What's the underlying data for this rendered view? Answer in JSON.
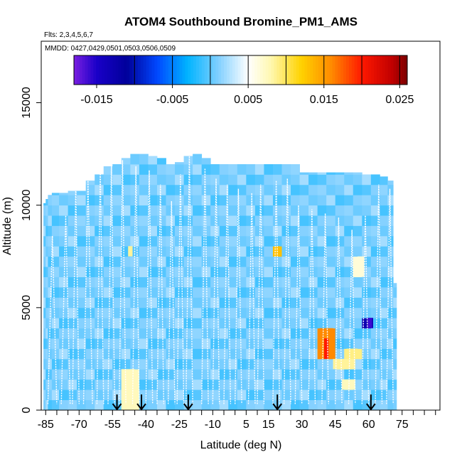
{
  "chart_data": {
    "type": "heatmap",
    "title": "ATOM4 Southbound Bromine_PM1_AMS",
    "flights_label": "Flts: 2,3,4,5,6,7",
    "dates_label": "MMDD: 0427,0429,0501,0503,0506,0509",
    "xlabel": "Latitude (deg N)",
    "ylabel": "Altitude (m)",
    "xlim": [
      -87,
      92
    ],
    "ylim": [
      0,
      18000
    ],
    "x_ticks": [
      -85,
      -70,
      -55,
      -40,
      -25,
      -10,
      5,
      15,
      30,
      45,
      60,
      75
    ],
    "x_tick_labels": [
      "-85",
      "-70",
      "-55",
      "-40",
      "-25",
      "-10",
      "5",
      "15",
      "30",
      "45",
      "60",
      "75"
    ],
    "x_minor_ticks": [
      -80,
      -75,
      -65,
      -60,
      -50,
      -45,
      -35,
      -30,
      -20,
      -15,
      -5,
      0,
      10,
      20,
      25,
      35,
      40,
      50,
      55,
      65,
      70,
      80,
      85,
      90
    ],
    "y_ticks": [
      0,
      5000,
      10000,
      15000
    ],
    "y_tick_labels": [
      "0",
      "5000",
      "10000",
      "15000"
    ],
    "colorbar": {
      "range": [
        -0.018,
        0.026
      ],
      "ticks": [
        -0.015,
        -0.005,
        0.005,
        0.015,
        0.025
      ],
      "tick_labels": [
        "-0.015",
        "-0.005",
        "0.005",
        "0.015",
        "0.025"
      ],
      "lines": [
        -0.01,
        -0.005,
        0.0,
        0.005,
        0.01,
        0.015,
        0.02,
        0.025
      ],
      "stops": [
        {
          "v": -0.018,
          "c": "#7a1fe0"
        },
        {
          "v": -0.015,
          "c": "#1a00c8"
        },
        {
          "v": -0.011,
          "c": "#00009a"
        },
        {
          "v": -0.007,
          "c": "#0048ff"
        },
        {
          "v": -0.003,
          "c": "#00b4ff"
        },
        {
          "v": 0.001,
          "c": "#7fcfff"
        },
        {
          "v": 0.005,
          "c": "#ffffff"
        },
        {
          "v": 0.008,
          "c": "#fff8b0"
        },
        {
          "v": 0.012,
          "c": "#ffd200"
        },
        {
          "v": 0.016,
          "c": "#ff8a00"
        },
        {
          "v": 0.02,
          "c": "#ff1800"
        },
        {
          "v": 0.024,
          "c": "#c00000"
        },
        {
          "v": 0.026,
          "c": "#7a0000"
        }
      ]
    },
    "base_values": [
      0.0008,
      0.0015,
      -0.0003,
      0.0022,
      0.0004,
      0.0012,
      -0.0008
    ],
    "columns": [
      {
        "lat": -85.5,
        "top": 10100
      },
      {
        "lat": -84.5,
        "top": 10300
      },
      {
        "lat": -83.5,
        "top": 10500
      },
      {
        "lat": -81,
        "top": 10600
      },
      {
        "lat": -77,
        "top": 10600
      },
      {
        "lat": -73,
        "top": 10700
      },
      {
        "lat": -69,
        "top": 10700
      },
      {
        "lat": -65,
        "top": 11200
      },
      {
        "lat": -61,
        "top": 11500
      },
      {
        "lat": -57,
        "top": 11900
      },
      {
        "lat": -53,
        "top": 12000
      },
      {
        "lat": -49,
        "top": 12300
      },
      {
        "lat": -45,
        "top": 12500
      },
      {
        "lat": -41,
        "top": 12500
      },
      {
        "lat": -37,
        "top": 12400
      },
      {
        "lat": -33,
        "top": 12300
      },
      {
        "lat": -29,
        "top": 12000
      },
      {
        "lat": -25,
        "top": 12100
      },
      {
        "lat": -21,
        "top": 12400
      },
      {
        "lat": -17,
        "top": 12500
      },
      {
        "lat": -13,
        "top": 12300
      },
      {
        "lat": -9,
        "top": 12000
      },
      {
        "lat": -5,
        "top": 12000
      },
      {
        "lat": -1,
        "top": 12000
      },
      {
        "lat": 3,
        "top": 12000
      },
      {
        "lat": 7,
        "top": 12000
      },
      {
        "lat": 11,
        "top": 12000
      },
      {
        "lat": 15,
        "top": 12000
      },
      {
        "lat": 19,
        "top": 12000
      },
      {
        "lat": 23,
        "top": 12000
      },
      {
        "lat": 27,
        "top": 12000
      },
      {
        "lat": 31,
        "top": 11600
      },
      {
        "lat": 35,
        "top": 11600
      },
      {
        "lat": 39,
        "top": 11600
      },
      {
        "lat": 43,
        "top": 11600
      },
      {
        "lat": 47,
        "top": 11600
      },
      {
        "lat": 51,
        "top": 11600
      },
      {
        "lat": 55,
        "top": 11600
      },
      {
        "lat": 59,
        "top": 11500
      },
      {
        "lat": 63,
        "top": 11500
      },
      {
        "lat": 67,
        "top": 11400
      },
      {
        "lat": 70,
        "top": 11200
      },
      {
        "lat": 72,
        "top": 6200
      }
    ],
    "anomalies": [
      {
        "lat_min": -51,
        "lat_max": -45,
        "alt_min": 0,
        "alt_max": 2000,
        "value": 0.0075
      },
      {
        "lat_min": -48,
        "lat_max": -46,
        "alt_min": 7500,
        "alt_max": 8000,
        "value": 0.0085
      },
      {
        "lat_min": 18,
        "lat_max": 20,
        "alt_min": 7500,
        "alt_max": 8000,
        "value": 0.013
      },
      {
        "lat_min": 38,
        "lat_max": 44,
        "alt_min": 2500,
        "alt_max": 4000,
        "value": 0.016
      },
      {
        "lat_min": 40,
        "lat_max": 42,
        "alt_min": 2500,
        "alt_max": 3500,
        "value": 0.02
      },
      {
        "lat_min": 44,
        "lat_max": 54,
        "alt_min": 2000,
        "alt_max": 2500,
        "value": 0.0085
      },
      {
        "lat_min": 50,
        "lat_max": 55,
        "alt_min": 2500,
        "alt_max": 3000,
        "value": 0.009
      },
      {
        "lat_min": 48,
        "lat_max": 54,
        "alt_min": 1000,
        "alt_max": 1500,
        "value": 0.0075
      },
      {
        "lat_min": 55,
        "lat_max": 58,
        "alt_min": 6500,
        "alt_max": 7500,
        "value": 0.0065
      },
      {
        "lat_min": 59,
        "lat_max": 62,
        "alt_min": 4000,
        "alt_max": 4500,
        "value": -0.013
      },
      {
        "lat_min": 59.5,
        "lat_max": 61.5,
        "alt_min": 4000,
        "alt_max": 4500,
        "value": -0.016
      }
    ],
    "profiles": [
      {
        "lat0": -84,
        "lat1": -80,
        "alt_top": 8500
      },
      {
        "lat0": -78,
        "lat1": -74,
        "alt_top": 9500
      },
      {
        "lat0": -73,
        "lat1": -70,
        "alt_top": 11000
      },
      {
        "lat0": -68,
        "lat1": -64,
        "alt_top": 11200
      },
      {
        "lat0": -62,
        "lat1": -59,
        "alt_top": 11800
      },
      {
        "lat0": -57,
        "lat1": -54,
        "alt_top": 11900
      },
      {
        "lat0": -52,
        "lat1": -49,
        "alt_top": 12200
      },
      {
        "lat0": -46,
        "lat1": -43,
        "alt_top": 11900
      },
      {
        "lat0": -40,
        "lat1": -37,
        "alt_top": 11700
      },
      {
        "lat0": -35,
        "lat1": -32,
        "alt_top": 11000
      },
      {
        "lat0": -30,
        "lat1": -27,
        "alt_top": 10200
      },
      {
        "lat0": -26,
        "lat1": -23,
        "alt_top": 11500
      },
      {
        "lat0": -22,
        "lat1": -19,
        "alt_top": 12400
      },
      {
        "lat0": -15,
        "lat1": -12,
        "alt_top": 11800
      },
      {
        "lat0": -10,
        "lat1": -7,
        "alt_top": 11300
      },
      {
        "lat0": -5,
        "lat1": -2,
        "alt_top": 11000
      },
      {
        "lat0": 0,
        "lat1": 3,
        "alt_top": 10800
      },
      {
        "lat0": 6,
        "lat1": 9,
        "alt_top": 10600
      },
      {
        "lat0": 10,
        "lat1": 13,
        "alt_top": 11000
      },
      {
        "lat0": 17,
        "lat1": 20,
        "alt_top": 11200
      },
      {
        "lat0": 22,
        "lat1": 25,
        "alt_top": 11300
      },
      {
        "lat0": 27,
        "lat1": 30,
        "alt_top": 10000
      },
      {
        "lat0": 33,
        "lat1": 36,
        "alt_top": 9800
      },
      {
        "lat0": 39,
        "lat1": 42,
        "alt_top": 9600
      },
      {
        "lat0": 45,
        "lat1": 48,
        "alt_top": 9400
      },
      {
        "lat0": 51,
        "lat1": 54,
        "alt_top": 8800
      },
      {
        "lat0": 57,
        "lat1": 60,
        "alt_top": 9500
      },
      {
        "lat0": 63,
        "lat1": 66,
        "alt_top": 11000
      },
      {
        "lat0": 68,
        "lat1": 71,
        "alt_top": 10800
      }
    ],
    "arrows_lat": [
      -53,
      -42,
      -21,
      19,
      61
    ]
  }
}
